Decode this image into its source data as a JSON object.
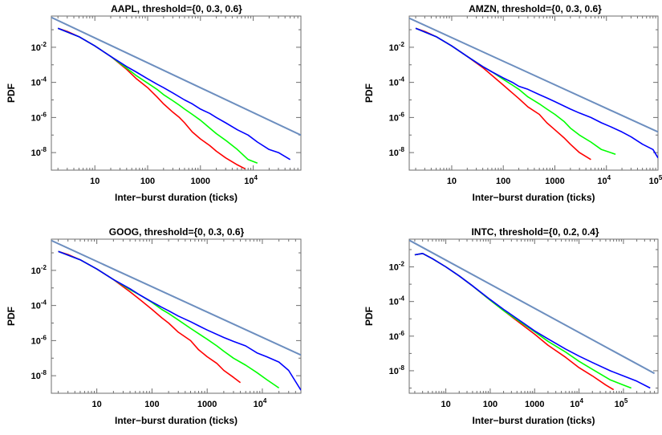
{
  "chart_data": [
    {
      "type": "line",
      "title": "AAPL, threshold={0, 0.3, 0.6}",
      "xlabel": "Inter−burst duration (ticks)",
      "ylabel": "PDF",
      "xscale": "log",
      "yscale": "log",
      "xlim": [
        1.5,
        80000
      ],
      "ylim": [
        1e-09,
        0.6
      ],
      "xticks": [
        {
          "v": 10,
          "l": "10"
        },
        {
          "v": 100,
          "l": "100"
        },
        {
          "v": 1000,
          "l": "1000"
        },
        {
          "v": 10000,
          "b": "10",
          "e": "4"
        }
      ],
      "yticks": [
        {
          "v": 0.01,
          "b": "10",
          "e": "-2"
        },
        {
          "v": 0.0001,
          "b": "10",
          "e": "-4"
        },
        {
          "v": 1e-06,
          "b": "10",
          "e": "-6"
        },
        {
          "v": 1e-08,
          "b": "10",
          "e": "-8"
        }
      ],
      "series": [
        {
          "color": "#ff0000",
          "x": [
            2,
            3,
            5,
            10,
            20,
            40,
            60,
            100,
            150,
            200,
            300,
            400,
            500,
            700,
            1000,
            1500,
            2000,
            3000,
            5000,
            7000
          ],
          "y": [
            0.12,
            0.08,
            0.04,
            0.012,
            0.003,
            0.00055,
            0.00017,
            5e-05,
            1.5e-05,
            6e-06,
            2e-06,
            1e-06,
            5e-07,
            1.5e-07,
            6e-08,
            2.5e-08,
            1.2e-08,
            5e-09,
            2e-09,
            1.2e-09
          ]
        },
        {
          "color": "#00ff00",
          "x": [
            2,
            5,
            10,
            20,
            40,
            60,
            100,
            150,
            200,
            300,
            400,
            500,
            700,
            1000,
            1500,
            2000,
            3000,
            5000,
            8000,
            12000
          ],
          "y": [
            0.12,
            0.04,
            0.012,
            0.003,
            0.00065,
            0.00025,
            9e-05,
            4e-05,
            2e-05,
            9e-06,
            5e-06,
            3e-06,
            1.5e-06,
            7e-07,
            2.5e-07,
            1.2e-07,
            5e-08,
            1.5e-08,
            4e-09,
            2.5e-09
          ]
        },
        {
          "color": "#0000ff",
          "x": [
            2,
            5,
            10,
            20,
            40,
            60,
            100,
            150,
            200,
            300,
            500,
            700,
            1000,
            1500,
            2000,
            3000,
            5000,
            8000,
            12000,
            20000,
            30000,
            50000
          ],
          "y": [
            0.12,
            0.04,
            0.012,
            0.003,
            0.0008,
            0.0004,
            0.00016,
            8e-05,
            5e-05,
            2.5e-05,
            1e-05,
            6e-06,
            3e-06,
            1.7e-06,
            1e-06,
            5e-07,
            2e-07,
            1e-07,
            4e-08,
            1.5e-08,
            1e-08,
            4e-09
          ]
        },
        {
          "color": "#6c8ebf",
          "x": [
            1.5,
            80000
          ],
          "y": [
            0.5,
            1e-07
          ]
        }
      ]
    },
    {
      "type": "line",
      "title": "AMZN, threshold={0, 0.3, 0.6}",
      "xlabel": "Inter−burst duration (ticks)",
      "ylabel": "PDF",
      "xscale": "log",
      "yscale": "log",
      "xlim": [
        1.5,
        100000
      ],
      "ylim": [
        1e-09,
        0.6
      ],
      "xticks": [
        {
          "v": 10,
          "l": "10"
        },
        {
          "v": 100,
          "l": "100"
        },
        {
          "v": 1000,
          "l": "1000"
        },
        {
          "v": 10000,
          "b": "10",
          "e": "4"
        },
        {
          "v": 100000,
          "b": "10",
          "e": "5"
        }
      ],
      "yticks": [
        {
          "v": 0.01,
          "b": "10",
          "e": "-2"
        },
        {
          "v": 0.0001,
          "b": "10",
          "e": "-4"
        },
        {
          "v": 1e-06,
          "b": "10",
          "e": "-6"
        },
        {
          "v": 1e-08,
          "b": "10",
          "e": "-8"
        }
      ],
      "series": [
        {
          "color": "#ff0000",
          "x": [
            2,
            3,
            5,
            10,
            20,
            40,
            60,
            100,
            150,
            200,
            300,
            500,
            700,
            1000,
            1500,
            2000,
            3000,
            5000
          ],
          "y": [
            0.12,
            0.08,
            0.04,
            0.012,
            0.003,
            0.0007,
            0.00025,
            7e-05,
            2.5e-05,
            1.2e-05,
            4e-06,
            1.5e-06,
            5e-07,
            2e-07,
            7e-08,
            3e-08,
            1e-08,
            4e-09
          ]
        },
        {
          "color": "#00ff00",
          "x": [
            2,
            5,
            10,
            20,
            40,
            60,
            100,
            150,
            200,
            300,
            500,
            700,
            1000,
            1500,
            2000,
            3000,
            5000,
            8000,
            15000
          ],
          "y": [
            0.12,
            0.04,
            0.012,
            0.003,
            0.0008,
            0.0004,
            0.00015,
            7e-05,
            4e-05,
            1.5e-05,
            6e-06,
            3e-06,
            1.5e-06,
            6e-07,
            2.5e-07,
            1e-07,
            4e-08,
            1.5e-08,
            8e-09
          ]
        },
        {
          "color": "#0000ff",
          "x": [
            2,
            5,
            10,
            20,
            40,
            60,
            100,
            150,
            200,
            300,
            500,
            700,
            1000,
            2000,
            3000,
            5000,
            8000,
            12000,
            20000,
            30000,
            50000,
            80000,
            100000
          ],
          "y": [
            0.12,
            0.04,
            0.012,
            0.003,
            0.0008,
            0.0004,
            0.00018,
            0.0001,
            6e-05,
            4e-05,
            2e-05,
            1.3e-05,
            8e-06,
            3e-06,
            1.8e-06,
            1e-06,
            5e-07,
            3e-07,
            1.5e-07,
            8e-08,
            3e-08,
            1.5e-08,
            5e-09
          ]
        },
        {
          "color": "#6c8ebf",
          "x": [
            1.5,
            100000
          ],
          "y": [
            0.45,
            1.5e-07
          ]
        }
      ]
    },
    {
      "type": "line",
      "title": "GOOG, threshold={0, 0.3, 0.6}",
      "xlabel": "Inter−burst duration (ticks)",
      "ylabel": "PDF",
      "xscale": "log",
      "yscale": "log",
      "xlim": [
        1.5,
        50000
      ],
      "ylim": [
        1e-09,
        0.6
      ],
      "xticks": [
        {
          "v": 10,
          "l": "10"
        },
        {
          "v": 100,
          "l": "100"
        },
        {
          "v": 1000,
          "l": "1000"
        },
        {
          "v": 10000,
          "b": "10",
          "e": "4"
        }
      ],
      "yticks": [
        {
          "v": 0.01,
          "b": "10",
          "e": "-2"
        },
        {
          "v": 0.0001,
          "b": "10",
          "e": "-4"
        },
        {
          "v": 1e-06,
          "b": "10",
          "e": "-6"
        },
        {
          "v": 1e-08,
          "b": "10",
          "e": "-8"
        }
      ],
      "series": [
        {
          "color": "#ff0000",
          "x": [
            2,
            3,
            5,
            10,
            20,
            40,
            60,
            100,
            150,
            200,
            300,
            500,
            700,
            1000,
            1500,
            2000,
            3000,
            4000
          ],
          "y": [
            0.12,
            0.08,
            0.04,
            0.012,
            0.003,
            0.0006,
            0.00022,
            6e-05,
            2e-05,
            1e-05,
            3e-06,
            1e-06,
            3e-07,
            1.2e-07,
            5e-08,
            2e-08,
            8e-09,
            4e-09
          ]
        },
        {
          "color": "#00ff00",
          "x": [
            2,
            5,
            10,
            20,
            40,
            60,
            100,
            150,
            200,
            300,
            500,
            700,
            1000,
            1500,
            2000,
            3000,
            5000,
            8000,
            12000,
            20000
          ],
          "y": [
            0.12,
            0.04,
            0.012,
            0.003,
            0.0008,
            0.0004,
            0.00015,
            6e-05,
            3.5e-05,
            1.5e-05,
            5e-06,
            2.5e-06,
            1.2e-06,
            5e-07,
            2.5e-07,
            1e-07,
            4e-08,
            1.5e-08,
            6e-09,
            2e-09
          ]
        },
        {
          "color": "#0000ff",
          "x": [
            2,
            5,
            10,
            20,
            40,
            60,
            100,
            150,
            200,
            300,
            500,
            700,
            1000,
            2000,
            3000,
            5000,
            8000,
            12000,
            20000,
            30000,
            50000
          ],
          "y": [
            0.12,
            0.04,
            0.012,
            0.003,
            0.0009,
            0.0004,
            0.00016,
            8e-05,
            5e-05,
            2.5e-05,
            1.2e-05,
            7e-06,
            4e-06,
            1.5e-06,
            9e-07,
            5e-07,
            2e-07,
            1.2e-07,
            6e-08,
            2e-08,
            1.5e-09
          ]
        },
        {
          "color": "#6c8ebf",
          "x": [
            1.5,
            50000
          ],
          "y": [
            0.5,
            1.5e-07
          ]
        }
      ]
    },
    {
      "type": "line",
      "title": "INTC, threshold={0, 0.2, 0.4}",
      "xlabel": "Inter−burst duration (ticks)",
      "ylabel": "PDF",
      "xscale": "log",
      "yscale": "log",
      "xlim": [
        1.5,
        600000
      ],
      "ylim": [
        5e-10,
        0.4
      ],
      "xticks": [
        {
          "v": 10,
          "l": "10"
        },
        {
          "v": 100,
          "l": "100"
        },
        {
          "v": 1000,
          "l": "1000"
        },
        {
          "v": 10000,
          "b": "10",
          "e": "4"
        },
        {
          "v": 100000,
          "b": "10",
          "e": "5"
        }
      ],
      "yticks": [
        {
          "v": 0.01,
          "b": "10",
          "e": "-2"
        },
        {
          "v": 0.0001,
          "b": "10",
          "e": "-4"
        },
        {
          "v": 1e-06,
          "b": "10",
          "e": "-6"
        },
        {
          "v": 1e-08,
          "b": "10",
          "e": "-8"
        }
      ],
      "series": [
        {
          "color": "#ff0000",
          "x": [
            2,
            3,
            5,
            10,
            20,
            40,
            100,
            200,
            500,
            1000,
            2000,
            5000,
            10000,
            20000,
            40000,
            60000
          ],
          "y": [
            0.05,
            0.06,
            0.03,
            0.01,
            0.003,
            0.0008,
            0.00012,
            3e-05,
            5e-06,
            1.3e-06,
            3e-07,
            6e-08,
            1.5e-08,
            5e-09,
            1.5e-09,
            8e-10
          ]
        },
        {
          "color": "#00ff00",
          "x": [
            2,
            3,
            5,
            10,
            20,
            40,
            100,
            200,
            500,
            1000,
            2000,
            5000,
            10000,
            20000,
            50000,
            100000,
            150000
          ],
          "y": [
            0.05,
            0.06,
            0.03,
            0.01,
            0.003,
            0.0008,
            0.00012,
            3e-05,
            6e-06,
            1.8e-06,
            5e-07,
            1.2e-07,
            3.5e-08,
            1.2e-08,
            3e-09,
            1.5e-09,
            1e-09
          ]
        },
        {
          "color": "#0000ff",
          "x": [
            2,
            3,
            5,
            10,
            20,
            40,
            100,
            200,
            500,
            1000,
            2000,
            5000,
            10000,
            20000,
            50000,
            100000,
            200000,
            400000
          ],
          "y": [
            0.05,
            0.06,
            0.03,
            0.01,
            0.003,
            0.0008,
            0.00013,
            3.5e-05,
            7e-06,
            2e-06,
            7e-07,
            1.8e-07,
            7e-08,
            3e-08,
            1e-08,
            5e-09,
            2.5e-09,
            1e-09
          ]
        },
        {
          "color": "#6c8ebf",
          "x": [
            1.5,
            500000
          ],
          "y": [
            0.35,
            7e-09
          ]
        }
      ]
    }
  ]
}
